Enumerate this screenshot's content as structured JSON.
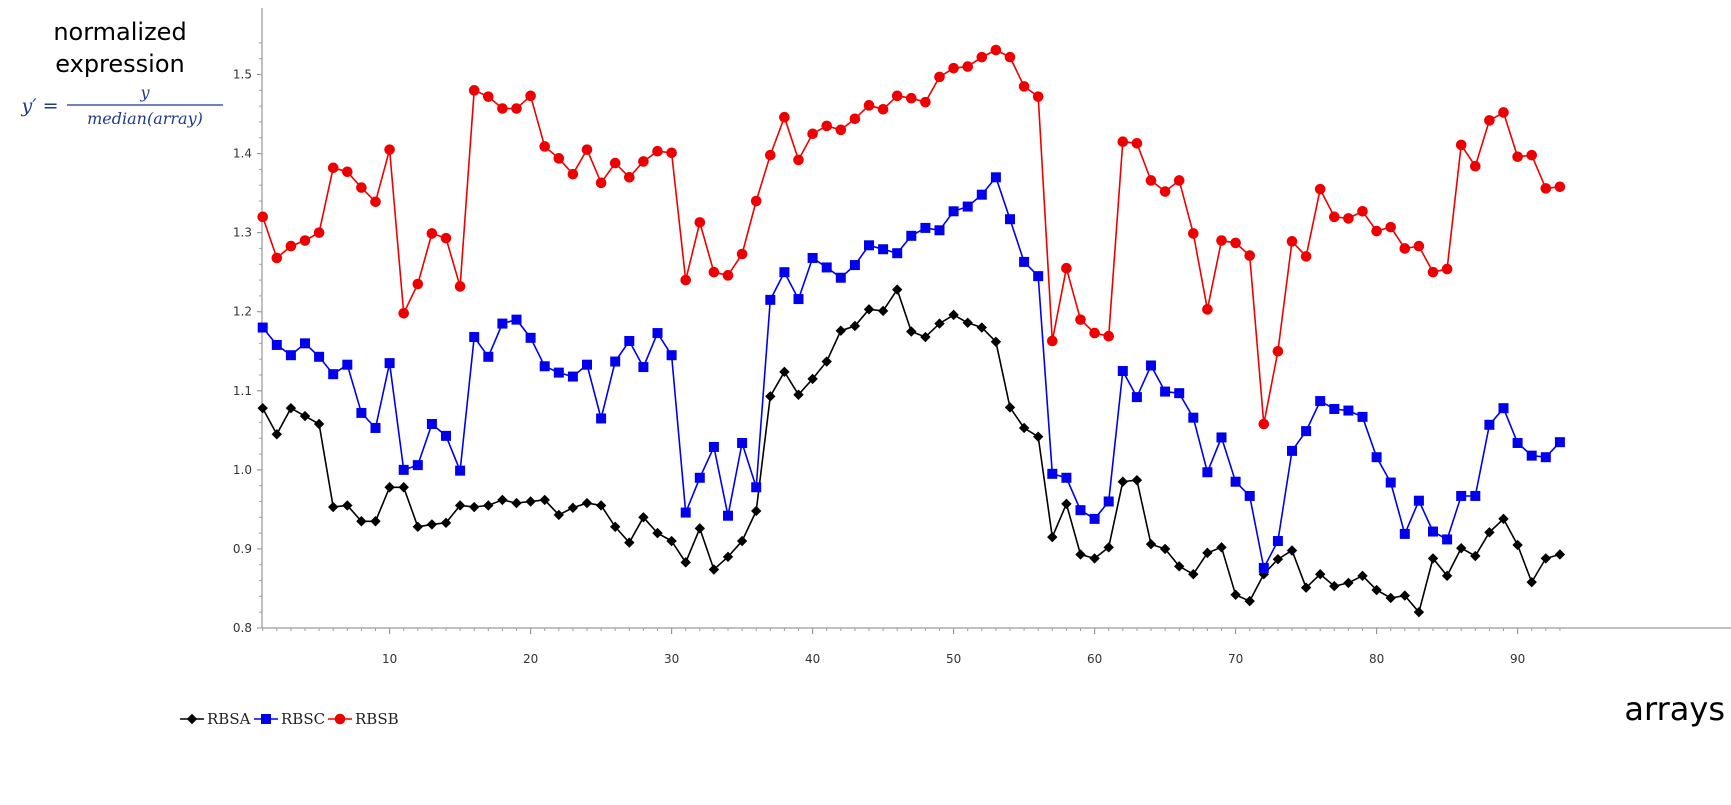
{
  "chart_data": {
    "type": "line",
    "ylabel_lines": [
      "normalized",
      "expression"
    ],
    "ylabel_formula": {
      "lhs": "y′ =",
      "numerator": "y",
      "denominator": "median(array)"
    },
    "xlabel": "arrays",
    "ylim": [
      0.8,
      1.55
    ],
    "yticks": [
      "0.8",
      "0.9",
      "1.0",
      "1.1",
      "1.2",
      "1.3",
      "1.4",
      "1.5"
    ],
    "xticks": [
      "10",
      "20",
      "30",
      "40",
      "50",
      "60",
      "70",
      "80",
      "90"
    ],
    "grid": false,
    "legend_position": "bottom-left",
    "x": [
      1,
      2,
      3,
      4,
      5,
      6,
      7,
      8,
      9,
      10,
      11,
      12,
      13,
      14,
      15,
      16,
      17,
      18,
      19,
      20,
      21,
      22,
      23,
      24,
      25,
      26,
      27,
      28,
      29,
      30,
      31,
      32,
      33,
      34,
      35,
      36,
      37,
      38,
      39,
      40,
      41,
      42,
      43,
      44,
      45,
      46,
      47,
      48,
      49,
      50,
      51,
      52,
      53,
      54,
      55,
      56,
      57,
      58,
      59,
      60,
      61,
      62,
      63,
      64,
      65,
      66,
      67,
      68,
      69,
      70,
      71,
      72,
      73,
      74,
      75,
      76,
      77,
      78,
      79,
      80,
      81,
      82,
      83,
      84,
      85,
      86,
      87,
      88,
      89,
      90,
      91,
      92,
      93
    ],
    "series": [
      {
        "name": "RBSA",
        "color": "#000000",
        "marker": "diamond",
        "values": [
          1.078,
          1.045,
          1.078,
          1.068,
          1.058,
          0.953,
          0.955,
          0.935,
          0.935,
          0.978,
          0.978,
          0.928,
          0.931,
          0.933,
          0.955,
          0.953,
          0.955,
          0.962,
          0.958,
          0.96,
          0.962,
          0.943,
          0.952,
          0.958,
          0.955,
          0.928,
          0.908,
          0.94,
          0.92,
          0.91,
          0.883,
          0.926,
          0.874,
          0.89,
          0.91,
          0.948,
          1.093,
          1.124,
          1.095,
          1.115,
          1.137,
          1.176,
          1.182,
          1.203,
          1.201,
          1.228,
          1.175,
          1.168,
          1.185,
          1.196,
          1.186,
          1.18,
          1.162,
          1.079,
          1.053,
          1.042,
          0.915,
          0.957,
          0.893,
          0.888,
          0.902,
          0.985,
          0.987,
          0.906,
          0.9,
          0.878,
          0.868,
          0.895,
          0.902,
          0.842,
          0.834,
          0.868,
          0.887,
          0.898,
          0.851,
          0.868,
          0.853,
          0.857,
          0.866,
          0.848,
          0.838,
          0.841,
          0.82,
          0.888,
          0.866,
          0.901,
          0.891,
          0.921,
          0.938,
          0.905,
          0.858,
          0.888,
          0.893
        ]
      },
      {
        "name": "RBSC",
        "color": "#0000ee",
        "marker": "square",
        "values": [
          1.18,
          1.158,
          1.145,
          1.16,
          1.143,
          1.121,
          1.133,
          1.072,
          1.053,
          1.135,
          1.0,
          1.006,
          1.058,
          1.043,
          0.999,
          1.168,
          1.143,
          1.185,
          1.19,
          1.167,
          1.131,
          1.123,
          1.118,
          1.133,
          1.065,
          1.137,
          1.163,
          1.13,
          1.173,
          1.145,
          0.946,
          0.99,
          1.029,
          0.942,
          1.034,
          0.978,
          1.215,
          1.25,
          1.216,
          1.268,
          1.256,
          1.243,
          1.259,
          1.284,
          1.279,
          1.274,
          1.296,
          1.306,
          1.303,
          1.327,
          1.333,
          1.348,
          1.37,
          1.317,
          1.263,
          1.245,
          0.995,
          0.99,
          0.949,
          0.938,
          0.96,
          1.125,
          1.092,
          1.132,
          1.099,
          1.097,
          1.066,
          0.997,
          1.041,
          0.985,
          0.967,
          0.876,
          0.91,
          1.024,
          1.049,
          1.087,
          1.077,
          1.075,
          1.067,
          1.016,
          0.984,
          0.919,
          0.961,
          0.922,
          0.912,
          0.967,
          0.967,
          1.057,
          1.078,
          1.034,
          1.018,
          1.016,
          1.035
        ]
      },
      {
        "name": "RBSB",
        "color": "#ee0000",
        "marker": "circle",
        "values": [
          1.32,
          1.268,
          1.283,
          1.29,
          1.3,
          1.382,
          1.377,
          1.357,
          1.339,
          1.405,
          1.198,
          1.235,
          1.299,
          1.293,
          1.232,
          1.48,
          1.472,
          1.457,
          1.457,
          1.473,
          1.409,
          1.394,
          1.374,
          1.405,
          1.363,
          1.388,
          1.37,
          1.39,
          1.403,
          1.401,
          1.24,
          1.313,
          1.25,
          1.246,
          1.273,
          1.34,
          1.398,
          1.446,
          1.392,
          1.425,
          1.435,
          1.43,
          1.444,
          1.461,
          1.456,
          1.473,
          1.47,
          1.465,
          1.497,
          1.508,
          1.51,
          1.522,
          1.531,
          1.522,
          1.485,
          1.472,
          1.163,
          1.255,
          1.19,
          1.173,
          1.169,
          1.415,
          1.413,
          1.366,
          1.352,
          1.366,
          1.299,
          1.203,
          1.29,
          1.287,
          1.271,
          1.058,
          1.15,
          1.289,
          1.27,
          1.355,
          1.32,
          1.318,
          1.327,
          1.302,
          1.307,
          1.28,
          1.283,
          1.25,
          1.254,
          1.411,
          1.384,
          1.442,
          1.452,
          1.396,
          1.398,
          1.356,
          1.358
        ]
      }
    ]
  }
}
